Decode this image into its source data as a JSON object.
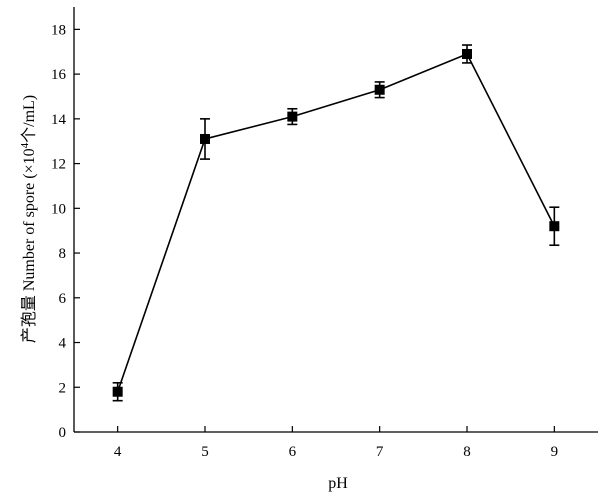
{
  "chart_data": {
    "type": "line",
    "xlabel": "pH",
    "ylabel_main": "产孢量 Number of spore (×10",
    "ylabel_exp": "4",
    "ylabel_tail": "个/mL)",
    "x": [
      4,
      5,
      6,
      7,
      8,
      9
    ],
    "xlim": [
      3.5,
      9.5
    ],
    "ylim": [
      0,
      19
    ],
    "x_ticks": [
      4,
      5,
      6,
      7,
      8,
      9
    ],
    "y_ticks": [
      0,
      2,
      4,
      6,
      8,
      10,
      12,
      14,
      16,
      18
    ],
    "series": [
      {
        "values": [
          1.8,
          13.1,
          14.1,
          15.3,
          16.9,
          9.2
        ],
        "errors": [
          0.4,
          0.9,
          0.35,
          0.35,
          0.4,
          0.85
        ],
        "marker": "square",
        "color": "#000000"
      }
    ],
    "grid": false,
    "legend": "none"
  }
}
